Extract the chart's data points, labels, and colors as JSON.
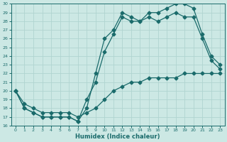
{
  "xlabel": "Humidex (Indice chaleur)",
  "bg_color": "#cce8e4",
  "line_color": "#1a6b6b",
  "grid_color": "#b0d4d0",
  "xlim": [
    -0.5,
    23.5
  ],
  "ylim": [
    16,
    30
  ],
  "line1_x": [
    0,
    1,
    2,
    3,
    4,
    5,
    6,
    7,
    8,
    9,
    10,
    11,
    12,
    13,
    14,
    15,
    16,
    17,
    18,
    19,
    20,
    21,
    22,
    23
  ],
  "line1_y": [
    20,
    18.5,
    18,
    17.5,
    17.5,
    17.5,
    17.5,
    17,
    17.5,
    18,
    19,
    20,
    20.5,
    21,
    21,
    21.5,
    21.5,
    21.5,
    21.5,
    22,
    22,
    22,
    22,
    22
  ],
  "line2_x": [
    0,
    1,
    2,
    3,
    4,
    5,
    6,
    7,
    8,
    9,
    10,
    11,
    12,
    13,
    14,
    15,
    16,
    17,
    18,
    19,
    20,
    21,
    22,
    23
  ],
  "line2_y": [
    20,
    18,
    17.5,
    17,
    17,
    17,
    17,
    16.5,
    19,
    21,
    24.5,
    26.5,
    28.5,
    28,
    28,
    28.5,
    28,
    28.5,
    29,
    28.5,
    28.5,
    26,
    23.5,
    22.5
  ],
  "line3_x": [
    0,
    1,
    2,
    3,
    4,
    5,
    6,
    7,
    8,
    9,
    10,
    11,
    12,
    13,
    14,
    15,
    16,
    17,
    18,
    19,
    20,
    21,
    22,
    23
  ],
  "line3_y": [
    20,
    18,
    17.5,
    17,
    17,
    17,
    17,
    16.5,
    18,
    22,
    26,
    27,
    29,
    28.5,
    28,
    29,
    29,
    29.5,
    30,
    30,
    29.5,
    26.5,
    24,
    23
  ],
  "marker": "D",
  "marker_size": 2.5,
  "line_width": 0.9,
  "ytick_values": [
    16,
    17,
    18,
    19,
    20,
    21,
    22,
    23,
    24,
    25,
    26,
    27,
    28,
    29,
    30
  ],
  "xtick_values": [
    0,
    1,
    2,
    3,
    4,
    5,
    6,
    7,
    8,
    9,
    10,
    11,
    12,
    13,
    14,
    15,
    16,
    17,
    18,
    19,
    20,
    21,
    22,
    23
  ]
}
